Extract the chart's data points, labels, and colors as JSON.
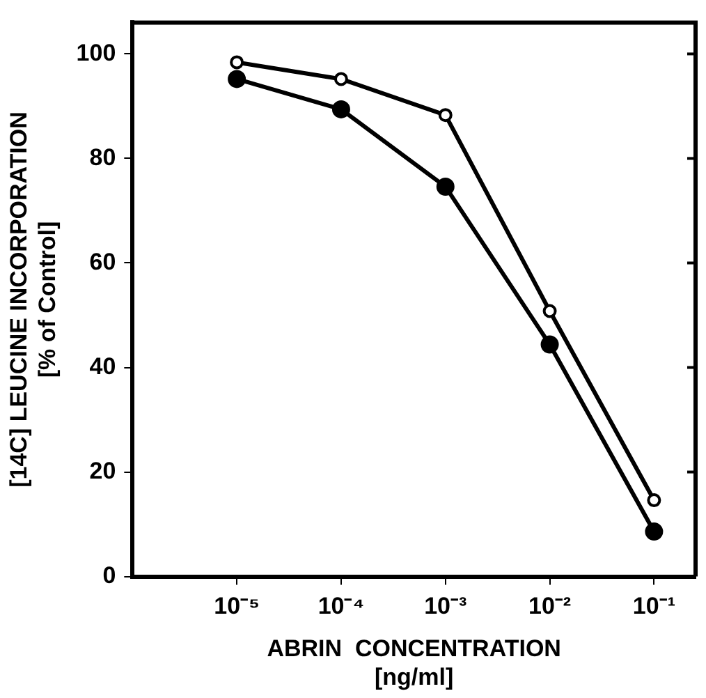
{
  "chart_data": {
    "type": "line",
    "xlabel": "ABRIN  CONCENTRATION\n[ng/ml]",
    "ylabel": "[14C] LEUCINE INCORPORATION\n[% of Control]",
    "x": [
      1e-05,
      0.0001,
      0.001,
      0.01,
      0.1
    ],
    "series": [
      {
        "color": "#000000",
        "values": [
          98.4,
          95.2,
          88.3,
          50.8,
          14.6
        ]
      },
      {
        "color": "#000000",
        "values": [
          95.2,
          89.4,
          74.6,
          44.4,
          8.6
        ]
      }
    ],
    "log": "x",
    "xlim": [
      1e-06,
      0.25
    ],
    "xticks": [
      {
        "value": 1e-05,
        "label": "10⁻⁵"
      },
      {
        "value": 0.0001,
        "label": "10⁻⁴"
      },
      {
        "value": 0.001,
        "label": "10⁻³"
      },
      {
        "value": 0.01,
        "label": "10⁻²"
      },
      {
        "value": 0.1,
        "label": "10⁻¹"
      }
    ],
    "ylim": [
      0,
      106
    ],
    "yticks": [
      0,
      20,
      40,
      60,
      80,
      100
    ],
    "grid": false,
    "legend": false,
    "marker": "circle",
    "line_style": "solid"
  }
}
